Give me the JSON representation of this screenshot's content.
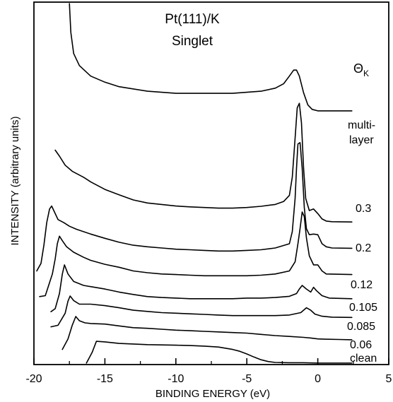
{
  "chart_data": {
    "type": "line",
    "title": "Pt(111)/K",
    "subtitle": "Singlet",
    "xlabel": "BINDING ENERGY (eV)",
    "ylabel": "INTENSITY (arbitrary units)",
    "xlim": [
      -20,
      5
    ],
    "x_ticks": [
      "-20",
      "-15",
      "-10",
      "-5",
      "0",
      "5"
    ],
    "legend_title": "Θ",
    "legend_title_sub": "K",
    "series": [
      {
        "name": "clean",
        "points": [
          [
            -16.3,
            0.005
          ],
          [
            -15.9,
            0.04
          ],
          [
            -15.6,
            0.077
          ],
          [
            -15.0,
            0.075
          ],
          [
            -14.0,
            0.07
          ],
          [
            -13.0,
            0.068
          ],
          [
            -12.0,
            0.066
          ],
          [
            -11.0,
            0.065
          ],
          [
            -10.0,
            0.064
          ],
          [
            -9.0,
            0.063
          ],
          [
            -8.0,
            0.061
          ],
          [
            -7.0,
            0.058
          ],
          [
            -6.0,
            0.05
          ],
          [
            -5.5,
            0.044
          ],
          [
            -5.0,
            0.035
          ],
          [
            -4.5,
            0.025
          ],
          [
            -4.0,
            0.016
          ],
          [
            -3.5,
            0.01
          ],
          [
            -3.0,
            0.007
          ],
          [
            -2.0,
            0.006
          ],
          [
            -1.0,
            0.006
          ],
          [
            0.0,
            0.005
          ],
          [
            1.5,
            0.005
          ],
          [
            2.4,
            0.005
          ]
        ]
      },
      {
        "name": "0.06",
        "points": [
          [
            -18.0,
            0.05
          ],
          [
            -17.6,
            0.085
          ],
          [
            -17.3,
            0.13
          ],
          [
            -17.05,
            0.159
          ],
          [
            -16.8,
            0.145
          ],
          [
            -16.4,
            0.138
          ],
          [
            -16.0,
            0.136
          ],
          [
            -15.0,
            0.134
          ],
          [
            -14.0,
            0.128
          ],
          [
            -13.0,
            0.122
          ],
          [
            -12.0,
            0.12
          ],
          [
            -11.0,
            0.117
          ],
          [
            -10.0,
            0.114
          ],
          [
            -9.0,
            0.112
          ],
          [
            -8.0,
            0.11
          ],
          [
            -7.0,
            0.108
          ],
          [
            -6.0,
            0.106
          ],
          [
            -5.0,
            0.104
          ],
          [
            -4.0,
            0.1
          ],
          [
            -3.0,
            0.096
          ],
          [
            -2.0,
            0.093
          ],
          [
            -1.0,
            0.09
          ],
          [
            -0.5,
            0.088
          ],
          [
            0.0,
            0.085
          ],
          [
            0.5,
            0.084
          ],
          [
            1.5,
            0.083
          ],
          [
            2.4,
            0.082
          ]
        ]
      },
      {
        "name": "0.085",
        "points": [
          [
            -18.8,
            0.125
          ],
          [
            -18.3,
            0.13
          ],
          [
            -17.8,
            0.17
          ],
          [
            -17.6,
            0.21
          ],
          [
            -17.45,
            0.227
          ],
          [
            -17.2,
            0.212
          ],
          [
            -16.8,
            0.2
          ],
          [
            -16.0,
            0.2
          ],
          [
            -15.0,
            0.195
          ],
          [
            -14.0,
            0.188
          ],
          [
            -13.0,
            0.18
          ],
          [
            -12.0,
            0.176
          ],
          [
            -11.0,
            0.172
          ],
          [
            -10.0,
            0.17
          ],
          [
            -9.0,
            0.168
          ],
          [
            -8.0,
            0.166
          ],
          [
            -7.0,
            0.164
          ],
          [
            -6.0,
            0.162
          ],
          [
            -5.0,
            0.162
          ],
          [
            -4.0,
            0.162
          ],
          [
            -3.0,
            0.162
          ],
          [
            -2.0,
            0.164
          ],
          [
            -1.2,
            0.172
          ],
          [
            -0.8,
            0.188
          ],
          [
            -0.5,
            0.18
          ],
          [
            -0.2,
            0.167
          ],
          [
            0.3,
            0.16
          ],
          [
            1.0,
            0.157
          ],
          [
            2.4,
            0.156
          ]
        ]
      },
      {
        "name": "0.105",
        "points": [
          [
            -18.8,
            0.175
          ],
          [
            -18.5,
            0.185
          ],
          [
            -18.2,
            0.235
          ],
          [
            -18.0,
            0.3
          ],
          [
            -17.85,
            0.33
          ],
          [
            -17.6,
            0.3
          ],
          [
            -17.2,
            0.275
          ],
          [
            -16.5,
            0.262
          ],
          [
            -16.0,
            0.258
          ],
          [
            -15.0,
            0.25
          ],
          [
            -14.0,
            0.24
          ],
          [
            -13.0,
            0.232
          ],
          [
            -12.0,
            0.225
          ],
          [
            -11.0,
            0.222
          ],
          [
            -10.0,
            0.22
          ],
          [
            -9.0,
            0.218
          ],
          [
            -8.0,
            0.218
          ],
          [
            -7.0,
            0.218
          ],
          [
            -6.0,
            0.218
          ],
          [
            -5.0,
            0.22
          ],
          [
            -4.0,
            0.22
          ],
          [
            -3.0,
            0.222
          ],
          [
            -2.0,
            0.226
          ],
          [
            -1.5,
            0.235
          ],
          [
            -1.3,
            0.25
          ],
          [
            -1.1,
            0.262
          ],
          [
            -0.8,
            0.25
          ],
          [
            -0.5,
            0.24
          ],
          [
            -0.3,
            0.256
          ],
          [
            -0.1,
            0.245
          ],
          [
            0.3,
            0.228
          ],
          [
            0.8,
            0.22
          ],
          [
            2.4,
            0.218
          ]
        ]
      },
      {
        "name": "0.12",
        "points": [
          [
            -19.6,
            0.225
          ],
          [
            -19.2,
            0.228
          ],
          [
            -18.7,
            0.3
          ],
          [
            -18.5,
            0.35
          ],
          [
            -18.35,
            0.4
          ],
          [
            -18.2,
            0.425
          ],
          [
            -18.0,
            0.41
          ],
          [
            -17.7,
            0.39
          ],
          [
            -17.2,
            0.372
          ],
          [
            -16.5,
            0.355
          ],
          [
            -16.0,
            0.345
          ],
          [
            -15.0,
            0.332
          ],
          [
            -14.0,
            0.322
          ],
          [
            -13.0,
            0.31
          ],
          [
            -12.0,
            0.304
          ],
          [
            -11.0,
            0.3
          ],
          [
            -10.0,
            0.298
          ],
          [
            -9.0,
            0.296
          ],
          [
            -8.0,
            0.294
          ],
          [
            -7.0,
            0.294
          ],
          [
            -6.0,
            0.294
          ],
          [
            -5.0,
            0.294
          ],
          [
            -4.0,
            0.296
          ],
          [
            -3.0,
            0.3
          ],
          [
            -2.0,
            0.31
          ],
          [
            -1.6,
            0.34
          ],
          [
            -1.4,
            0.4
          ],
          [
            -1.25,
            0.45
          ],
          [
            -1.1,
            0.505
          ],
          [
            -0.95,
            0.49
          ],
          [
            -0.8,
            0.42
          ],
          [
            -0.6,
            0.36
          ],
          [
            -0.3,
            0.33
          ],
          [
            0.0,
            0.33
          ],
          [
            0.3,
            0.31
          ],
          [
            0.6,
            0.3
          ],
          [
            2.4,
            0.298
          ]
        ]
      },
      {
        "name": "0.2",
        "points": [
          [
            -19.8,
            0.31
          ],
          [
            -19.5,
            0.335
          ],
          [
            -19.3,
            0.395
          ],
          [
            -19.1,
            0.47
          ],
          [
            -18.9,
            0.515
          ],
          [
            -18.75,
            0.525
          ],
          [
            -18.55,
            0.505
          ],
          [
            -18.3,
            0.48
          ],
          [
            -17.9,
            0.47
          ],
          [
            -17.5,
            0.458
          ],
          [
            -17.0,
            0.448
          ],
          [
            -16.0,
            0.432
          ],
          [
            -15.0,
            0.418
          ],
          [
            -14.0,
            0.405
          ],
          [
            -13.0,
            0.395
          ],
          [
            -12.0,
            0.39
          ],
          [
            -11.0,
            0.386
          ],
          [
            -10.0,
            0.382
          ],
          [
            -9.0,
            0.38
          ],
          [
            -8.0,
            0.378
          ],
          [
            -7.0,
            0.376
          ],
          [
            -6.0,
            0.376
          ],
          [
            -5.0,
            0.378
          ],
          [
            -4.0,
            0.38
          ],
          [
            -3.0,
            0.386
          ],
          [
            -2.0,
            0.4
          ],
          [
            -1.8,
            0.44
          ],
          [
            -1.6,
            0.55
          ],
          [
            -1.5,
            0.65
          ],
          [
            -1.4,
            0.73
          ],
          [
            -1.25,
            0.735
          ],
          [
            -1.1,
            0.65
          ],
          [
            -0.95,
            0.52
          ],
          [
            -0.8,
            0.45
          ],
          [
            -0.6,
            0.43
          ],
          [
            -0.3,
            0.432
          ],
          [
            0.0,
            0.43
          ],
          [
            0.3,
            0.4
          ],
          [
            0.6,
            0.39
          ],
          [
            1.0,
            0.386
          ],
          [
            2.4,
            0.385
          ]
        ]
      },
      {
        "name": "0.3",
        "points": [
          [
            -18.5,
            0.71
          ],
          [
            -18.2,
            0.69
          ],
          [
            -17.8,
            0.66
          ],
          [
            -17.3,
            0.64
          ],
          [
            -16.5,
            0.62
          ],
          [
            -16.0,
            0.605
          ],
          [
            -15.0,
            0.58
          ],
          [
            -14.0,
            0.562
          ],
          [
            -13.0,
            0.545
          ],
          [
            -12.0,
            0.535
          ],
          [
            -11.0,
            0.53
          ],
          [
            -10.0,
            0.525
          ],
          [
            -9.0,
            0.522
          ],
          [
            -8.0,
            0.52
          ],
          [
            -7.0,
            0.518
          ],
          [
            -6.0,
            0.518
          ],
          [
            -5.0,
            0.52
          ],
          [
            -4.0,
            0.524
          ],
          [
            -3.0,
            0.53
          ],
          [
            -2.4,
            0.54
          ],
          [
            -2.0,
            0.56
          ],
          [
            -1.8,
            0.62
          ],
          [
            -1.6,
            0.75
          ],
          [
            -1.45,
            0.85
          ],
          [
            -1.3,
            0.865
          ],
          [
            -1.15,
            0.8
          ],
          [
            -1.0,
            0.65
          ],
          [
            -0.85,
            0.55
          ],
          [
            -0.6,
            0.51
          ],
          [
            -0.3,
            0.515
          ],
          [
            0.0,
            0.5
          ],
          [
            0.3,
            0.482
          ],
          [
            0.6,
            0.475
          ],
          [
            1.0,
            0.473
          ],
          [
            2.4,
            0.472
          ]
        ]
      },
      {
        "name": "multilayer",
        "points": [
          [
            -17.5,
            1.195
          ],
          [
            -17.4,
            1.1
          ],
          [
            -17.2,
            1.03
          ],
          [
            -16.8,
            0.99
          ],
          [
            -16.0,
            0.955
          ],
          [
            -15.0,
            0.935
          ],
          [
            -14.0,
            0.92
          ],
          [
            -12.0,
            0.905
          ],
          [
            -10.0,
            0.898
          ],
          [
            -8.0,
            0.898
          ],
          [
            -6.0,
            0.898
          ],
          [
            -4.0,
            0.905
          ],
          [
            -3.0,
            0.915
          ],
          [
            -2.4,
            0.93
          ],
          [
            -2.0,
            0.955
          ],
          [
            -1.7,
            0.975
          ],
          [
            -1.5,
            0.975
          ],
          [
            -1.3,
            0.955
          ],
          [
            -1.0,
            0.9
          ],
          [
            -0.7,
            0.86
          ],
          [
            -0.4,
            0.845
          ],
          [
            0.0,
            0.84
          ],
          [
            1.0,
            0.84
          ],
          [
            2.4,
            0.84
          ]
        ]
      }
    ],
    "series_labels": [
      {
        "name": "multi-",
        "series": "multilayer"
      },
      {
        "name": "layer",
        "series": "multilayer"
      },
      {
        "name": "0.3",
        "series": "0.3"
      },
      {
        "name": "0.2",
        "series": "0.2"
      },
      {
        "name": "0.12",
        "series": "0.12"
      },
      {
        "name": "0.105",
        "series": "0.105"
      },
      {
        "name": "0.085",
        "series": "0.085"
      },
      {
        "name": "0.06",
        "series": "0.06"
      },
      {
        "name": "clean",
        "series": "clean"
      }
    ],
    "grid": false,
    "legend": "right"
  }
}
